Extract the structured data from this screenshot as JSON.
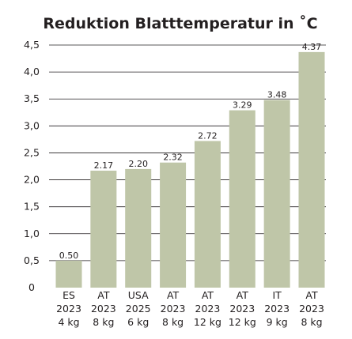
{
  "chart_data": {
    "type": "bar",
    "title": "Reduktion Blatttemperatur in ˚C",
    "xlabel": "",
    "ylabel": "",
    "ylim": [
      0,
      4.5
    ],
    "yticks": [
      "0",
      "0,5",
      "1,0",
      "1,5",
      "2,0",
      "2,5",
      "3,0",
      "3,5",
      "4,0",
      "4,5"
    ],
    "grid": true,
    "bar_color": "#bfc6a8",
    "grid_color": "#231f20",
    "categories": [
      {
        "country": "ES",
        "year": "2023",
        "amount": "4 kg"
      },
      {
        "country": "AT",
        "year": "2023",
        "amount": "8 kg"
      },
      {
        "country": "USA",
        "year": "2025",
        "amount": "6 kg"
      },
      {
        "country": "AT",
        "year": "2023",
        "amount": "8 kg"
      },
      {
        "country": "AT",
        "year": "2023",
        "amount": "12 kg"
      },
      {
        "country": "AT",
        "year": "2023",
        "amount": "12 kg"
      },
      {
        "country": "IT",
        "year": "2023",
        "amount": "9 kg"
      },
      {
        "country": "AT",
        "year": "2023",
        "amount": "8 kg"
      }
    ],
    "values": [
      0.5,
      2.17,
      2.2,
      2.32,
      2.72,
      3.29,
      3.48,
      4.37
    ],
    "value_labels": [
      "0.50",
      "2.17",
      "2.20",
      "2.32",
      "2.72",
      "3.29",
      "3.48",
      "4.37"
    ]
  }
}
